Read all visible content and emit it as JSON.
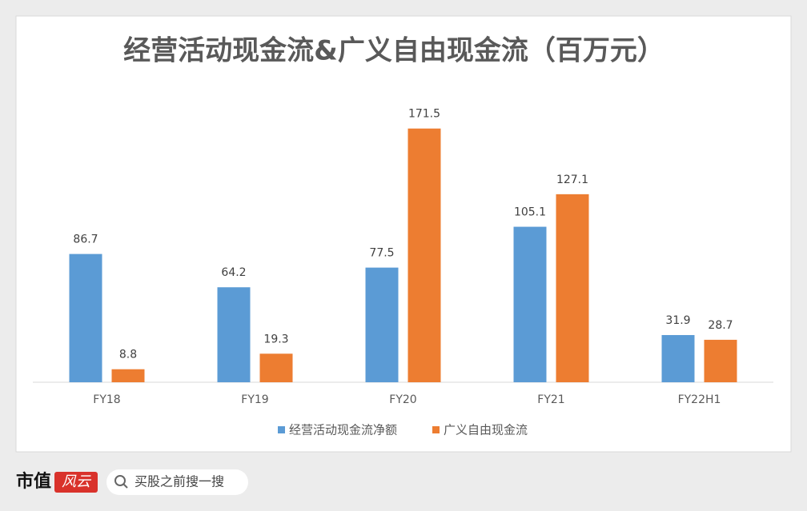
{
  "chart_data": {
    "type": "bar",
    "title": "经营活动现金流&广义自由现金流（百万元）",
    "categories": [
      "FY18",
      "FY19",
      "FY20",
      "FY21",
      "FY22H1"
    ],
    "series": [
      {
        "name": "经营活动现金流净额",
        "color": "#5b9bd5",
        "values": [
          86.7,
          64.2,
          77.5,
          105.1,
          31.9
        ]
      },
      {
        "name": "广义自由现金流",
        "color": "#ed7d31",
        "values": [
          8.8,
          19.3,
          171.5,
          127.1,
          28.7
        ]
      }
    ],
    "ylim": [
      0,
      180
    ],
    "legend": "bottom",
    "grid": false
  },
  "footer": {
    "logo": "市值",
    "badge": "风云",
    "search": "买股之前搜一搜"
  }
}
